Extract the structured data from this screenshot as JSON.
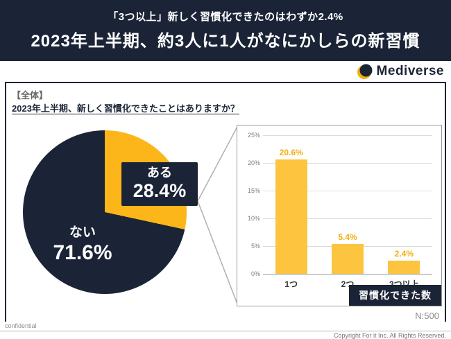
{
  "header": {
    "subtitle": "「3つ以上」新しく習慣化できたのはわずか2.4%",
    "title": "2023年上半期、約3人に1人がなにかしらの新習慣"
  },
  "logo": {
    "icon": "crescent-globe-icon",
    "brand": "Mediverse"
  },
  "panel": {
    "scope_label": "【全体】",
    "question": "2023年上半期、新しく習慣化できたことはありますか？",
    "sample_size": "N:500"
  },
  "colors": {
    "navy": "#1b2436",
    "pie_yes": "#fcb61a",
    "pie_no": "#1b2436",
    "bar_fill": "#fcc43f",
    "value_label": "#f2ae0d"
  },
  "chart_data": [
    {
      "type": "pie",
      "title": "2023年上半期、新しく習慣化できたことはありますか？",
      "categories": [
        "ある",
        "ない"
      ],
      "values": [
        28.4,
        71.6
      ],
      "value_labels": [
        "28.4%",
        "71.6%"
      ],
      "colors": [
        "#fcb61a",
        "#1b2436"
      ],
      "start_angle_deg": 0,
      "direction": "clockwise"
    },
    {
      "type": "bar",
      "title": "習慣化できた数",
      "categories": [
        "1つ",
        "2つ",
        "3つ以上"
      ],
      "values": [
        20.6,
        5.4,
        2.4
      ],
      "value_labels": [
        "20.6%",
        "5.4%",
        "2.4%"
      ],
      "ylim": [
        0,
        25
      ],
      "yticks": [
        0,
        5,
        10,
        15,
        20,
        25
      ],
      "ytick_labels": [
        "0%",
        "5%",
        "10%",
        "15%",
        "20%",
        "25%"
      ],
      "grid": true,
      "caption": "習慣化できた数"
    }
  ],
  "footer": {
    "confidential": "confidential",
    "copyright": "Copyright For it Inc. All Rights Reserved."
  }
}
